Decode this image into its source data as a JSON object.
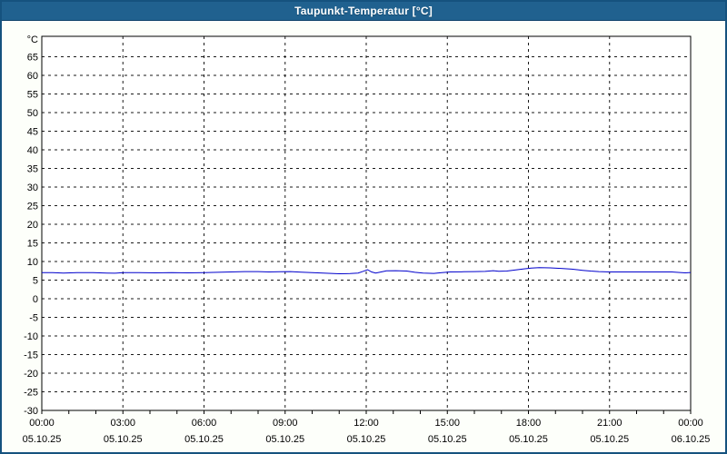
{
  "window": {
    "title": "Taupunkt-Temperatur [°C]"
  },
  "colors": {
    "titlebar_bg": "#20618f",
    "titlebar_text": "#ffffff",
    "window_border": "#15527e",
    "window_bg": "#fdfffa",
    "plot_bg": "#ffffff",
    "plot_border": "#000000",
    "grid": "#1a1a1a",
    "axis_text": "#000000",
    "line": "#0000cc"
  },
  "chart_data": {
    "type": "line",
    "title": "Taupunkt-Temperatur [°C]",
    "ylabel": "°C",
    "ylim": [
      -30,
      70.5
    ],
    "yticks": [
      65,
      60,
      55,
      50,
      45,
      40,
      35,
      30,
      25,
      20,
      15,
      10,
      5,
      0,
      -5,
      -10,
      -15,
      -20,
      -25,
      -30
    ],
    "grid": "dashed",
    "legend": "none",
    "x_axis": {
      "hours_span": 24,
      "major_tick_hours": 3,
      "minor_tick_hours": 1,
      "ticks": [
        {
          "time": "00:00",
          "date": "05.10.25"
        },
        {
          "time": "03:00",
          "date": "05.10.25"
        },
        {
          "time": "06:00",
          "date": "05.10.25"
        },
        {
          "time": "09:00",
          "date": "05.10.25"
        },
        {
          "time": "12:00",
          "date": "05.10.25"
        },
        {
          "time": "15:00",
          "date": "05.10.25"
        },
        {
          "time": "18:00",
          "date": "05.10.25"
        },
        {
          "time": "21:00",
          "date": "05.10.25"
        },
        {
          "time": "00:00",
          "date": "06.10.25"
        }
      ]
    },
    "series": [
      {
        "name": "Taupunkt-Temperatur",
        "color": "#0000cc",
        "points": [
          [
            0,
            7.0
          ],
          [
            0.4,
            7.0
          ],
          [
            0.8,
            6.9
          ],
          [
            1.3,
            7.0
          ],
          [
            1.9,
            7.0
          ],
          [
            2.4,
            6.9
          ],
          [
            2.7,
            6.85
          ],
          [
            3.0,
            7.0
          ],
          [
            3.6,
            7.0
          ],
          [
            4.2,
            6.95
          ],
          [
            4.8,
            7.0
          ],
          [
            5.4,
            6.95
          ],
          [
            6.0,
            7.0
          ],
          [
            6.5,
            7.1
          ],
          [
            7.0,
            7.2
          ],
          [
            7.5,
            7.3
          ],
          [
            8.0,
            7.3
          ],
          [
            8.4,
            7.2
          ],
          [
            8.8,
            7.25
          ],
          [
            9.2,
            7.3
          ],
          [
            9.6,
            7.15
          ],
          [
            10.0,
            7.0
          ],
          [
            10.5,
            6.85
          ],
          [
            11.0,
            6.7
          ],
          [
            11.4,
            6.75
          ],
          [
            11.7,
            6.9
          ],
          [
            11.9,
            7.4
          ],
          [
            12.05,
            7.8
          ],
          [
            12.2,
            7.2
          ],
          [
            12.35,
            6.9
          ],
          [
            12.55,
            7.2
          ],
          [
            12.75,
            7.5
          ],
          [
            13.1,
            7.55
          ],
          [
            13.5,
            7.45
          ],
          [
            13.8,
            7.1
          ],
          [
            14.1,
            6.9
          ],
          [
            14.5,
            6.8
          ],
          [
            14.8,
            7.0
          ],
          [
            15.1,
            7.2
          ],
          [
            15.6,
            7.25
          ],
          [
            16.0,
            7.3
          ],
          [
            16.4,
            7.35
          ],
          [
            16.7,
            7.55
          ],
          [
            16.9,
            7.4
          ],
          [
            17.2,
            7.45
          ],
          [
            17.5,
            7.7
          ],
          [
            17.8,
            8.0
          ],
          [
            18.1,
            8.25
          ],
          [
            18.4,
            8.35
          ],
          [
            18.8,
            8.3
          ],
          [
            19.2,
            8.15
          ],
          [
            19.6,
            7.95
          ],
          [
            20.0,
            7.65
          ],
          [
            20.3,
            7.45
          ],
          [
            20.6,
            7.3
          ],
          [
            21.0,
            7.2
          ],
          [
            21.6,
            7.2
          ],
          [
            22.2,
            7.2
          ],
          [
            22.8,
            7.2
          ],
          [
            23.3,
            7.2
          ],
          [
            23.6,
            7.05
          ],
          [
            23.8,
            6.95
          ],
          [
            24,
            7.05
          ]
        ]
      }
    ]
  }
}
